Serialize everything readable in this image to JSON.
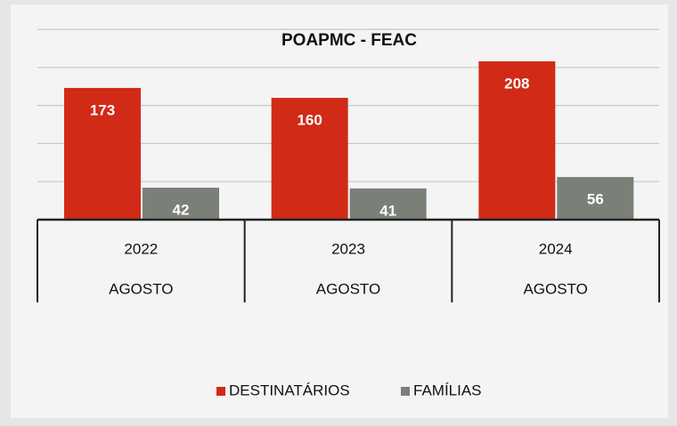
{
  "chart_data": {
    "type": "bar",
    "title": "POAPMC - FEAC",
    "categories": [
      "2022",
      "2023",
      "2024"
    ],
    "category_sublabels": [
      "AGOSTO",
      "AGOSTO",
      "AGOSTO"
    ],
    "series": [
      {
        "name": "DESTINATÁRIOS",
        "color": "#d12a17",
        "values": [
          173,
          160,
          208
        ]
      },
      {
        "name": "FAMÍLIAS",
        "color": "#7a8077",
        "values": [
          42,
          41,
          56
        ]
      }
    ],
    "ylim": [
      0,
      250
    ],
    "yticks": [
      0,
      50,
      100,
      150,
      200,
      250
    ],
    "grid": true,
    "legend": "bottom"
  }
}
